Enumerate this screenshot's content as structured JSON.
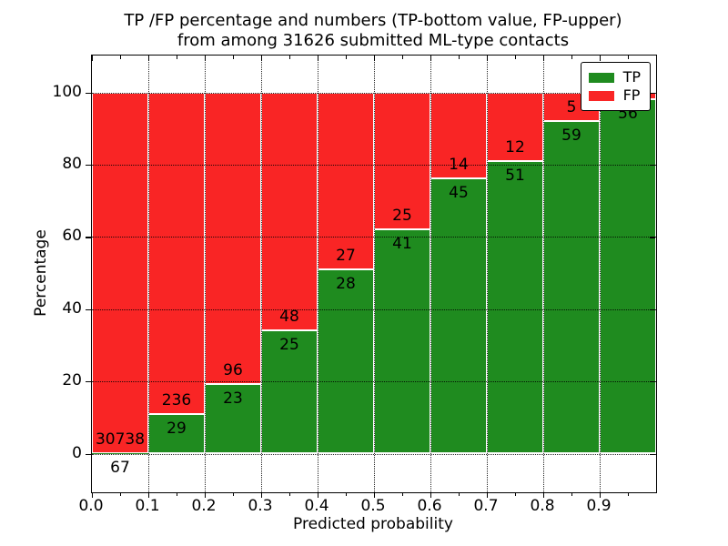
{
  "title": {
    "line1": "TP /FP percentage and numbers (TP-bottom value, FP-upper)",
    "line2": "from among 31626 submitted ML-type contacts"
  },
  "chart_data": {
    "type": "bar",
    "stacked": true,
    "normalized_to_percent": true,
    "title": "TP /FP percentage and numbers (TP-bottom value, FP-upper) from among 31626 submitted ML-type contacts",
    "xlabel": "Predicted probability",
    "ylabel": "Percentage",
    "total_contacts": 31626,
    "xlim": [
      0.0,
      1.0
    ],
    "ylim": [
      -11,
      110
    ],
    "grid": "dotted both axes",
    "x_tick_labels": [
      "0.0",
      "0.1",
      "0.2",
      "0.3",
      "0.4",
      "0.5",
      "0.6",
      "0.7",
      "0.8",
      "0.9"
    ],
    "y_ticks": [
      0,
      20,
      40,
      60,
      80,
      100
    ],
    "y_tick_labels": [
      "0",
      "20",
      "40",
      "60",
      "80",
      "100"
    ],
    "colors": {
      "tp": "#1F8B1F",
      "fp": "#F92525",
      "bar_edge": "#ffffff"
    },
    "legend": {
      "position": "upper right",
      "entries": [
        {
          "label": "TP",
          "color": "#1F8B1F"
        },
        {
          "label": "FP",
          "color": "#F92525"
        }
      ]
    },
    "bins": [
      {
        "range": [
          0.0,
          0.1
        ],
        "tp": 67,
        "fp": 30738,
        "tp_pct": 0.22,
        "fp_label_visible": true
      },
      {
        "range": [
          0.1,
          0.2
        ],
        "tp": 29,
        "fp": 236,
        "tp_pct": 10.94,
        "fp_label_visible": true
      },
      {
        "range": [
          0.2,
          0.3
        ],
        "tp": 23,
        "fp": 96,
        "tp_pct": 19.33,
        "fp_label_visible": true
      },
      {
        "range": [
          0.3,
          0.4
        ],
        "tp": 25,
        "fp": 48,
        "tp_pct": 34.25,
        "fp_label_visible": true
      },
      {
        "range": [
          0.4,
          0.5
        ],
        "tp": 28,
        "fp": 27,
        "tp_pct": 50.91,
        "fp_label_visible": true
      },
      {
        "range": [
          0.5,
          0.6
        ],
        "tp": 41,
        "fp": 25,
        "tp_pct": 62.12,
        "fp_label_visible": true
      },
      {
        "range": [
          0.6,
          0.7
        ],
        "tp": 45,
        "fp": 14,
        "tp_pct": 76.27,
        "fp_label_visible": true
      },
      {
        "range": [
          0.7,
          0.8
        ],
        "tp": 51,
        "fp": 12,
        "tp_pct": 80.95,
        "fp_label_visible": true
      },
      {
        "range": [
          0.8,
          0.9
        ],
        "tp": 59,
        "fp": 5,
        "tp_pct": 92.19,
        "fp_label_visible": true
      },
      {
        "range": [
          0.9,
          1.0
        ],
        "tp": 56,
        "fp": 1,
        "tp_pct": 98.25,
        "fp_label_visible": false
      }
    ]
  }
}
